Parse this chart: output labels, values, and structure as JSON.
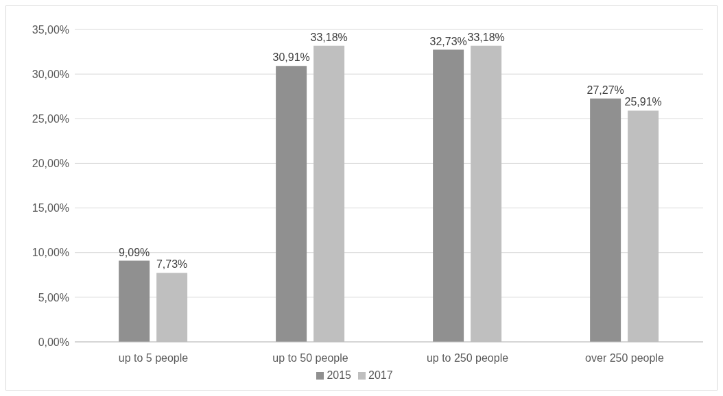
{
  "chart_data": {
    "type": "bar",
    "categories": [
      "up to 5 people",
      "up to 50 people",
      "up to 250 people",
      "over 250 people"
    ],
    "series": [
      {
        "name": "2015",
        "color": "#909090",
        "values": [
          9.09,
          30.91,
          32.73,
          27.27
        ],
        "value_labels": [
          "9,09%",
          "30,91%",
          "32,73%",
          "27,27%"
        ]
      },
      {
        "name": "2017",
        "color": "#bfbfbf",
        "values": [
          7.73,
          33.18,
          33.18,
          25.91
        ],
        "value_labels": [
          "7,73%",
          "33,18%",
          "33,18%",
          "25,91%"
        ]
      }
    ],
    "ylim": [
      0,
      35
    ],
    "yticks": [
      {
        "value": 0,
        "label": "0,00%"
      },
      {
        "value": 5,
        "label": "5,00%"
      },
      {
        "value": 10,
        "label": "10,00%"
      },
      {
        "value": 15,
        "label": "15,00%"
      },
      {
        "value": 20,
        "label": "20,00%"
      },
      {
        "value": 25,
        "label": "25,00%"
      },
      {
        "value": 30,
        "label": "30,00%"
      },
      {
        "value": 35,
        "label": "35,00%"
      }
    ],
    "grid": "y",
    "legend": "bottom"
  }
}
